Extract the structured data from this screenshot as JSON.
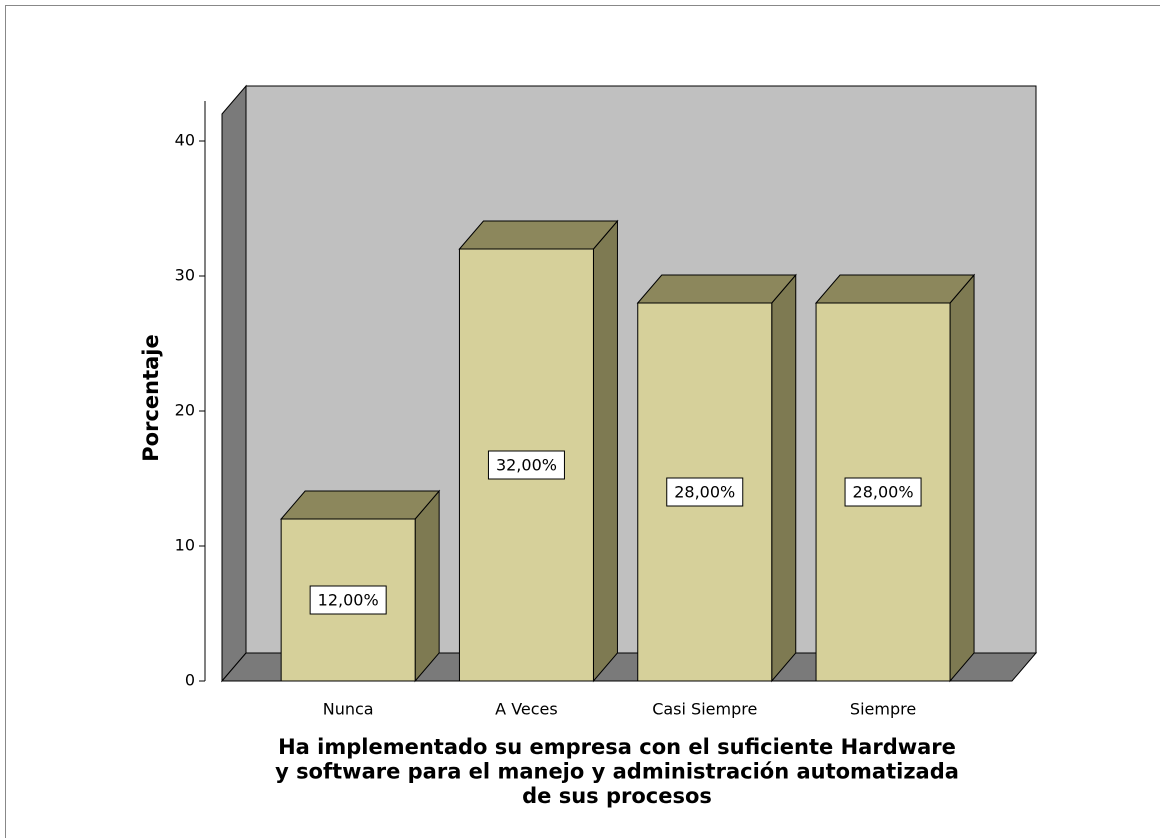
{
  "chart_data": {
    "type": "bar3d",
    "y_label": "Porcentaje",
    "x_label": [
      "Ha implementado su empresa con el suficiente Hardware",
      "y software para el manejo y administración automatizada",
      "de sus procesos"
    ],
    "categories": [
      "Nunca",
      "A Veces",
      "Casi Siempre",
      "Siempre"
    ],
    "values": [
      12,
      32,
      28,
      28
    ],
    "value_labels": [
      "12,00%",
      "32,00%",
      "28,00%",
      "28,00%"
    ],
    "color": "#d6d09a",
    "ylim": [
      0,
      42
    ],
    "yticks": [
      0,
      10,
      20,
      30,
      40
    ]
  }
}
